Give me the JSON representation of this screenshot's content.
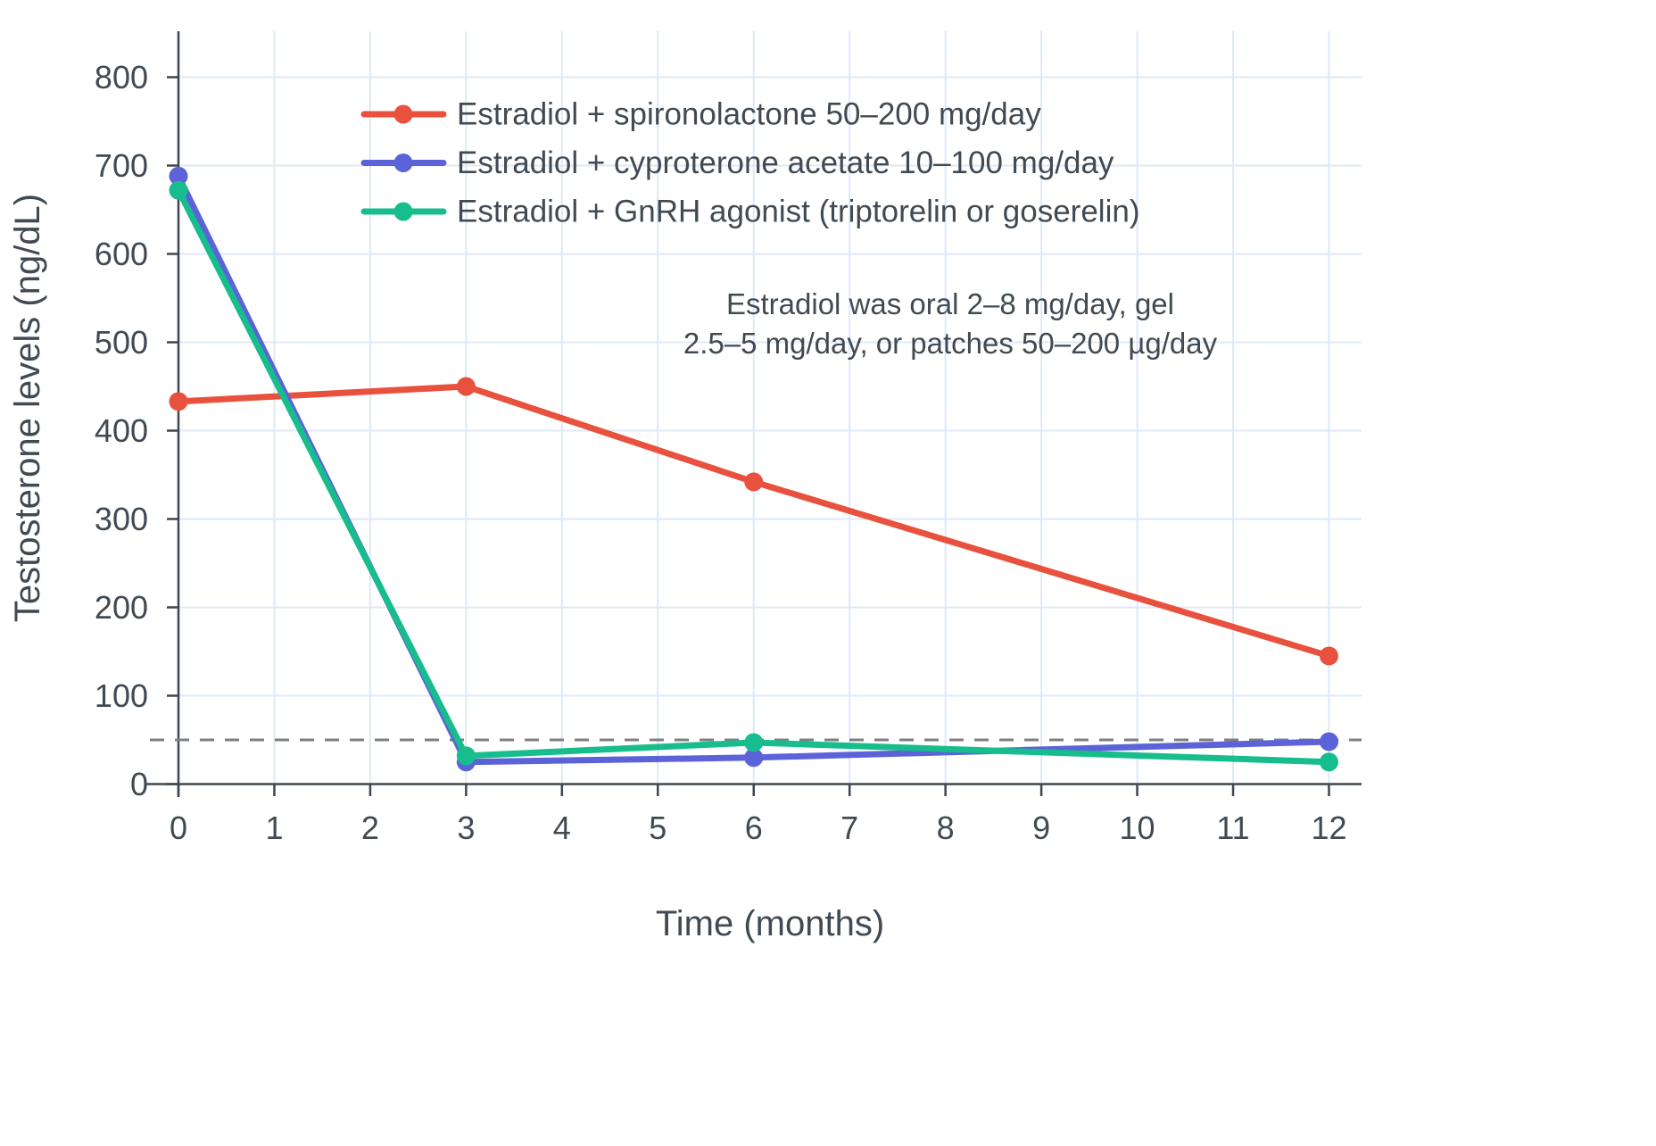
{
  "chart_data": {
    "type": "line",
    "title": "",
    "xlabel": "Time (months)",
    "ylabel": "Testosterone levels (ng/dL)",
    "x": [
      0,
      3,
      6,
      12
    ],
    "x_ticks": [
      0,
      1,
      2,
      3,
      4,
      5,
      6,
      7,
      8,
      9,
      10,
      11,
      12
    ],
    "y_ticks": [
      0,
      100,
      200,
      300,
      400,
      500,
      600,
      700,
      800
    ],
    "xlim": [
      0,
      12.34
    ],
    "ylim": [
      0,
      852
    ],
    "grid": true,
    "legend_position": "top-left-inside",
    "series": [
      {
        "name": "Estradiol + spironolactone 50–200 mg/day",
        "color": "#e8513d",
        "values": [
          433,
          450,
          342,
          145
        ]
      },
      {
        "name": "Estradiol + cyproterone acetate 10–100 mg/day",
        "color": "#5c63d8",
        "values": [
          688,
          25,
          30,
          48
        ]
      },
      {
        "name": "Estradiol + GnRH agonist (triptorelin or goserelin)",
        "color": "#17bd8d",
        "values": [
          672,
          32,
          47,
          25
        ]
      }
    ],
    "reference_line": {
      "y": 50,
      "style": "dashed",
      "color": "#7f7f7f"
    },
    "annotation": {
      "lines": [
        "Estradiol was oral 2–8 mg/day, gel",
        "2.5–5 mg/day, or patches 50–200 µg/day"
      ]
    },
    "colors": {
      "grid": "#dfe9f6",
      "axis": "#3f464d",
      "text": "#414a53",
      "background": "#ffffff"
    }
  }
}
